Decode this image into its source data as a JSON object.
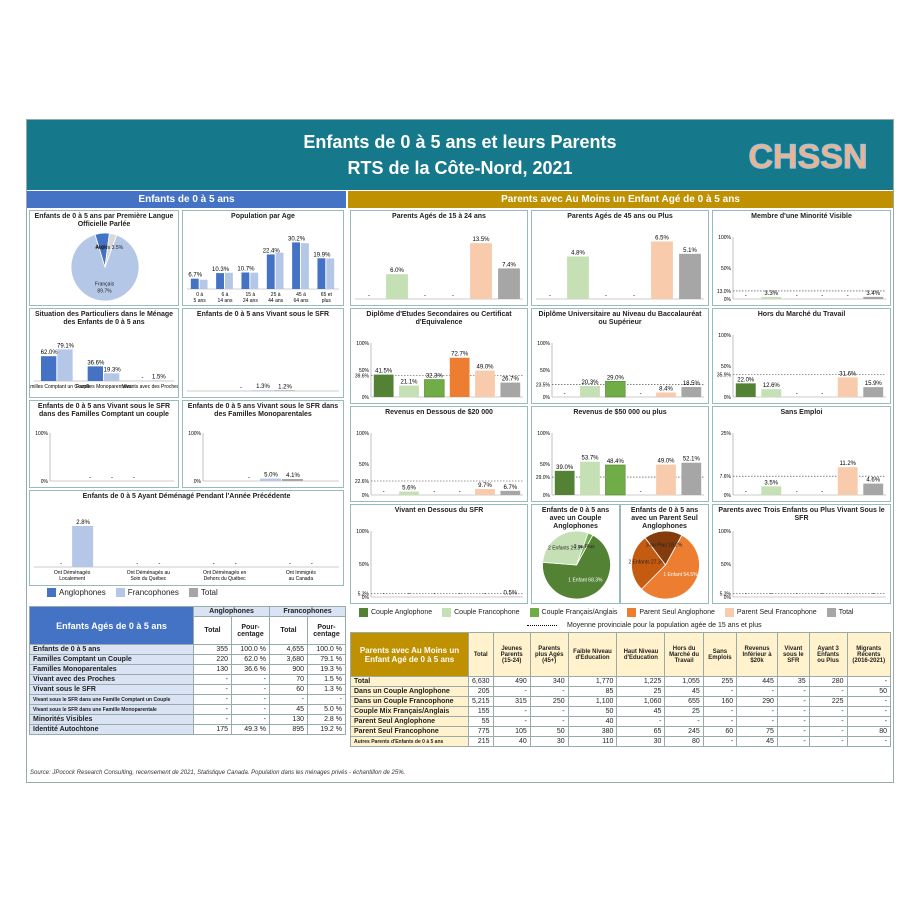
{
  "header": {
    "title": "Enfants de 0 à 5 ans et leurs Parents",
    "subtitle": "RTS de la Côte-Nord, 2021",
    "logo": "CHSSN"
  },
  "colors": {
    "teal": "#15798b",
    "blue_band": "#4472c4",
    "gold": "#bf9000",
    "anglo": "#4472c4",
    "franco": "#b4c7e7",
    "total": "#a6a6a6",
    "couple_anglo": "#548235",
    "couple_franco": "#c5e0b4",
    "couple_mix": "#70ad47",
    "seul_anglo": "#ed7d31",
    "seul_franco": "#f8cbad"
  },
  "left": {
    "band": "Enfants de 0 à 5 ans",
    "legend": {
      "anglo": "Anglophones",
      "franco": "Francophones",
      "total": "Total"
    }
  },
  "right": {
    "band": "Parents avec Au Moins un Enfant Agé de 0 à 5 ans",
    "legend": [
      "Couple Anglophone",
      "Couple Francophone",
      "Couple Français/Anglais",
      "Parent Seul Anglophone",
      "Parent Seul Francophone",
      "Total"
    ],
    "avg_note": "Moyenne provinciale pour la population agée de 15 ans et plus"
  },
  "chart_data": [
    {
      "id": "c-langue",
      "type": "pie",
      "title": "Enfants de 0 à 5 ans par Première Langue Officielle Parlée",
      "slices": [
        {
          "name": "Français",
          "value": 89.7,
          "label": "Français\n89.7%"
        },
        {
          "name": "Anglais",
          "value": 6.8,
          "label": "Anglais"
        },
        {
          "name": "Autres",
          "value": 3.5,
          "label": "Autres 3.5%"
        }
      ]
    },
    {
      "id": "c-age",
      "type": "bar",
      "title": "Population par Age",
      "categories": [
        "0 à 5 ans",
        "6 à 14 ans",
        "15 à 24 ans",
        "25 à 44 ans",
        "45 à 64 ans",
        "65 et plus"
      ],
      "series": [
        {
          "name": "Anglophones",
          "values": [
            6.7,
            10.3,
            10.7,
            22.4,
            30.2,
            19.9
          ]
        },
        {
          "name": "Francophones",
          "values": [
            6.0,
            10.5,
            10.6,
            23.5,
            29.7,
            19.8
          ]
        }
      ],
      "labels": [
        "6.7%",
        "10.3%",
        "10.7%",
        "22.4%",
        "30.2%",
        "19.9%"
      ],
      "ylim": [
        0,
        35
      ]
    },
    {
      "id": "c-situation",
      "type": "bar",
      "title": "Situation des Particuliers dans le Ménage des Enfants de 0 à 5 ans",
      "categories": [
        "Familles Comptant un Couple",
        "Familles Monoparentales",
        "Vivants avec des Proches"
      ],
      "series": [
        {
          "name": "Anglophones",
          "values": [
            62.0,
            36.6,
            0
          ]
        },
        {
          "name": "Francophones",
          "values": [
            79.1,
            19.3,
            1.5
          ]
        }
      ],
      "labels": [
        [
          "62.0%",
          "36.6%",
          "-"
        ],
        [
          "79.1%",
          "19.3%",
          "1.5%"
        ]
      ],
      "ylim": [
        0,
        100
      ]
    },
    {
      "id": "c-sfr",
      "type": "bar",
      "title": "Enfants de 0 à 5 ans Vivant sous le SFR",
      "categories": [
        ""
      ],
      "series": [
        {
          "name": "Anglophones",
          "values": [
            0
          ]
        },
        {
          "name": "Francophones",
          "values": [
            1.3
          ]
        },
        {
          "name": "Total",
          "values": [
            1.2
          ]
        }
      ],
      "labels": [
        "-",
        "1.3%",
        "1.2%"
      ],
      "ylim": [
        0,
        100
      ]
    },
    {
      "id": "c-sfr-couple",
      "type": "bar",
      "title": "Enfants de 0 à 5 ans Vivant sous le SFR dans des Familles Comptant un couple",
      "categories": [
        ""
      ],
      "series": [
        {
          "name": "Anglophones",
          "values": [
            0
          ]
        },
        {
          "name": "Francophones",
          "values": [
            0
          ]
        },
        {
          "name": "Total",
          "values": [
            0
          ]
        }
      ],
      "labels": [
        "-",
        "-",
        "-"
      ],
      "ylim": [
        0,
        100
      ],
      "yticks": [
        "100%",
        "0%"
      ]
    },
    {
      "id": "c-sfr-mono",
      "type": "bar",
      "title": "Enfants de 0 à 5 ans Vivant sous le SFR dans des Familles Monoparentales",
      "categories": [
        ""
      ],
      "series": [
        {
          "name": "Anglophones",
          "values": [
            0
          ]
        },
        {
          "name": "Francophones",
          "values": [
            5.0
          ]
        },
        {
          "name": "Total",
          "values": [
            4.1
          ]
        }
      ],
      "labels": [
        "-",
        "5.0%",
        "4.1%"
      ],
      "ylim": [
        0,
        100
      ],
      "yticks": [
        "100%",
        "0%"
      ]
    },
    {
      "id": "c-demenage",
      "type": "bar",
      "title": "Enfants de 0 à 5 Ayant Déménagé Pendant l'Année Précédente",
      "categories": [
        "Ont Déménagés Localement",
        "Ont Déménagés au Soin du Québec",
        "Ont Déménagés en Dehors du Québec",
        "Ont Immigrés au Canada"
      ],
      "series": [
        {
          "name": "Anglophones",
          "values": [
            0,
            0,
            0,
            0
          ]
        },
        {
          "name": "Francophones",
          "values": [
            2.8,
            0,
            0,
            0
          ]
        }
      ],
      "labels": [
        [
          "-",
          "-",
          "-",
          "-"
        ],
        [
          "2.8%",
          "-",
          "-",
          "-"
        ]
      ],
      "ylim": [
        0,
        3
      ]
    },
    {
      "id": "p-1524",
      "type": "bar",
      "title": "Parents Agés de 15 à 24 ans",
      "values": [
        0,
        6.0,
        0,
        0,
        13.5,
        7.4
      ],
      "labels": [
        "-",
        "6.0%",
        "-",
        "-",
        "13.5%",
        "7.4%"
      ],
      "ylim": [
        0,
        15
      ]
    },
    {
      "id": "p-45",
      "type": "bar",
      "title": "Parents Agés de 45 ans ou Plus",
      "values": [
        0,
        4.8,
        0,
        0,
        6.5,
        5.1
      ],
      "labels": [
        "-",
        "4.8%",
        "-",
        "-",
        "6.5%",
        "5.1%"
      ],
      "ylim": [
        0,
        7
      ]
    },
    {
      "id": "p-minorite",
      "type": "bar",
      "title": "Membre d'une Minorité Visible",
      "values": [
        0,
        3.3,
        0,
        0,
        0,
        3.4
      ],
      "labels": [
        "-",
        "3.3%",
        "-",
        "-",
        "-",
        "3.4%"
      ],
      "ylim": [
        0,
        100
      ],
      "yticks": [
        "100%",
        "50%",
        "0%"
      ],
      "avg": 13.0,
      "avg_label": "13.0%"
    },
    {
      "id": "p-diplome-sec",
      "type": "bar",
      "title": "Diplôme d'Etudes Secondaires ou Certificat d'Equivalence",
      "values": [
        41.5,
        21.1,
        32.3,
        72.7,
        49.0,
        26.7
      ],
      "labels": [
        "41.5%",
        "21.1%",
        "32.3%",
        "72.7%",
        "49.0%",
        "26.7%"
      ],
      "ylim": [
        0,
        100
      ],
      "yticks": [
        "100%",
        "50%",
        "0%"
      ],
      "avg": 39.6,
      "avg_label": "39.6%"
    },
    {
      "id": "p-diplome-uni",
      "type": "bar",
      "title": "Diplôme Universitaire au Niveau du Baccalauréat ou Supérieur",
      "values": [
        0,
        20.3,
        29.0,
        0,
        8.4,
        18.5
      ],
      "labels": [
        "-",
        "20.3%",
        "29.0%",
        "-",
        "8.4%",
        "18.5%"
      ],
      "ylim": [
        0,
        100
      ],
      "yticks": [
        "100%",
        "50%",
        "0%"
      ],
      "avg": 23.5,
      "avg_label": "23.5%"
    },
    {
      "id": "p-hors-marche",
      "type": "bar",
      "title": "Hors du Marché du Travail",
      "values": [
        22.0,
        12.6,
        0,
        0,
        31.6,
        15.9
      ],
      "labels": [
        "22.0%",
        "12.6%",
        "-",
        "-",
        "31.6%",
        "15.9%"
      ],
      "ylim": [
        0,
        100
      ],
      "yticks": [
        "100%",
        "50%",
        "0%"
      ],
      "avg": 35.9,
      "avg_label": "35.9%"
    },
    {
      "id": "p-rev20",
      "type": "bar",
      "title": "Revenus en Dessous de $20 000",
      "values": [
        0,
        5.6,
        0,
        0,
        9.7,
        6.7
      ],
      "labels": [
        "-",
        "5.6%",
        "-",
        "-",
        "9.7%",
        "6.7%"
      ],
      "ylim": [
        0,
        100
      ],
      "yticks": [
        "100%",
        "50%",
        "0%"
      ],
      "avg": 22.6,
      "avg_label": "22.6%"
    },
    {
      "id": "p-rev50",
      "type": "bar",
      "title": "Revenus de $50 000 ou plus",
      "values": [
        39.0,
        53.7,
        48.4,
        0,
        49.0,
        52.1
      ],
      "labels": [
        "39.0%",
        "53.7%",
        "48.4%",
        "-",
        "49.0%",
        "52.1%"
      ],
      "ylim": [
        0,
        100
      ],
      "yticks": [
        "100%",
        "50%",
        "0%"
      ],
      "avg": 29.0,
      "avg_label": "29.0%"
    },
    {
      "id": "p-sans-emploi",
      "type": "bar",
      "title": "Sans Emploi",
      "values": [
        0,
        3.5,
        0,
        0,
        11.2,
        4.6
      ],
      "labels": [
        "-",
        "3.5%",
        "-",
        "-",
        "11.2%",
        "4.6%"
      ],
      "ylim": [
        0,
        25
      ],
      "yticks": [
        "25%",
        "0%"
      ],
      "avg": 7.6,
      "avg_label": "7.6%"
    },
    {
      "id": "p-sfr",
      "type": "bar",
      "title": "Vivant en Dessous du SFR",
      "values": [
        0,
        0,
        0,
        0,
        0,
        0.5
      ],
      "labels": [
        "-",
        "-",
        "-",
        "-",
        "-",
        "0.5%"
      ],
      "ylim": [
        0,
        100
      ],
      "yticks": [
        "100%",
        "50%",
        "0%"
      ],
      "avg": 5.3,
      "avg_label": "5.3%"
    },
    {
      "id": "p-pie-anglo",
      "type": "pie",
      "title": "Enfants de 0 à 5 ans avec un Couple Anglophones",
      "slices": [
        {
          "name": "1 Enfant",
          "value": 68.3,
          "label": "1 Enfant 68.3%"
        },
        {
          "name": "2 Enfants",
          "value": 29.3,
          "label": "2 Enfants 29.3%"
        },
        {
          "name": "3 ou Plus",
          "value": 2.4,
          "label": "3 ou Plus"
        }
      ]
    },
    {
      "id": "p-pie-seul",
      "type": "pie",
      "title": "Enfants de 0 à 5 ans avec un Parent Seul Anglophones",
      "slices": [
        {
          "name": "1 Enfant",
          "value": 54.5,
          "label": "1 Enfant 54.5%"
        },
        {
          "name": "2 Enfants",
          "value": 27.3,
          "label": "2 Enfants 27.3%"
        },
        {
          "name": "3 ou Plus",
          "value": 18.2,
          "label": "3 ou Plus 18.2%"
        }
      ]
    },
    {
      "id": "p-trois",
      "type": "bar",
      "title": "Parents avec Trois Enfants ou Plus Vivant Sous le SFR",
      "values": [
        0,
        0,
        0,
        0,
        0,
        0
      ],
      "labels": [
        "-",
        "-",
        "-",
        "-",
        "-",
        "-"
      ],
      "ylim": [
        0,
        100
      ],
      "yticks": [
        "100%",
        "50%",
        "0%"
      ],
      "avg": 5.3,
      "avg_label": "5.3%"
    }
  ],
  "table_left": {
    "title": "Enfants Agés de 0 à 5 ans",
    "groups": [
      "Anglophones",
      "Francophones"
    ],
    "cols": [
      "Total",
      "Pour-centage",
      "Total",
      "Pour-centage"
    ],
    "rows": [
      [
        "Enfants de 0 à 5 ans",
        "355",
        "100.0 %",
        "4,655",
        "100.0 %"
      ],
      [
        "Familles Comptant un Couple",
        "220",
        "62.0 %",
        "3,680",
        "79.1 %"
      ],
      [
        "Familles Monoparentales",
        "130",
        "36.6 %",
        "900",
        "19.3 %"
      ],
      [
        "Vivant avec des Proches",
        "-",
        "-",
        "70",
        "1.5 %"
      ],
      [
        "Vivant sous le SFR",
        "-",
        "-",
        "60",
        "1.3 %"
      ],
      [
        "Vivant sous le SFR dans une Famille Comptant un Couple",
        "-",
        "-",
        "-",
        "-"
      ],
      [
        "Vivant sous le SFR dans une Famille Monoparentale",
        "-",
        "-",
        "45",
        "5.0 %"
      ],
      [
        "Minorités Visibles",
        "-",
        "-",
        "130",
        "2.8 %"
      ],
      [
        "Identité Autochtone",
        "175",
        "49.3 %",
        "895",
        "19.2 %"
      ]
    ]
  },
  "table_right": {
    "title": "Parents avec Au Moins un Enfant Agé de 0 à 5 ans",
    "cols": [
      "Total",
      "Jeunes Parents (15-24)",
      "Parents plus Agés (45+)",
      "Faible Niveau d'Education",
      "Haut Niveau d'Education",
      "Hors du Marché du Travail",
      "Sans Emplois",
      "Revenus Inférieur à $20k",
      "Vivant sous le SFR",
      "Ayant 3 Enfants ou Plus",
      "Migrants Récents (2016-2021)"
    ],
    "rows": [
      [
        "Total",
        "6,630",
        "490",
        "340",
        "1,770",
        "1,225",
        "1,055",
        "255",
        "445",
        "35",
        "280",
        "-"
      ],
      [
        "Dans un Couple Anglophone",
        "205",
        "-",
        "-",
        "85",
        "25",
        "45",
        "-",
        "-",
        "-",
        "-",
        "50"
      ],
      [
        "Dans un Couple Francophone",
        "5,215",
        "315",
        "250",
        "1,100",
        "1,060",
        "655",
        "160",
        "290",
        "-",
        "225",
        "-"
      ],
      [
        "Couple Mix Français/Anglais",
        "155",
        "-",
        "-",
        "50",
        "45",
        "25",
        "-",
        "-",
        "-",
        "-",
        "-"
      ],
      [
        "Parent Seul Anglophone",
        "55",
        "-",
        "-",
        "40",
        "-",
        "-",
        "-",
        "-",
        "-",
        "-",
        "-"
      ],
      [
        "Parent Seul Francophone",
        "775",
        "105",
        "50",
        "380",
        "65",
        "245",
        "60",
        "75",
        "-",
        "-",
        "80"
      ],
      [
        "Autres Parents d'Enfants de 0 à 5 ans",
        "215",
        "40",
        "30",
        "110",
        "30",
        "80",
        "-",
        "45",
        "-",
        "-",
        "-"
      ]
    ]
  },
  "source": "Source: JPocock Research Consulting, recensement de 2021, Statistique Canada. Population dans les ménages privés - échantillon de 25%."
}
